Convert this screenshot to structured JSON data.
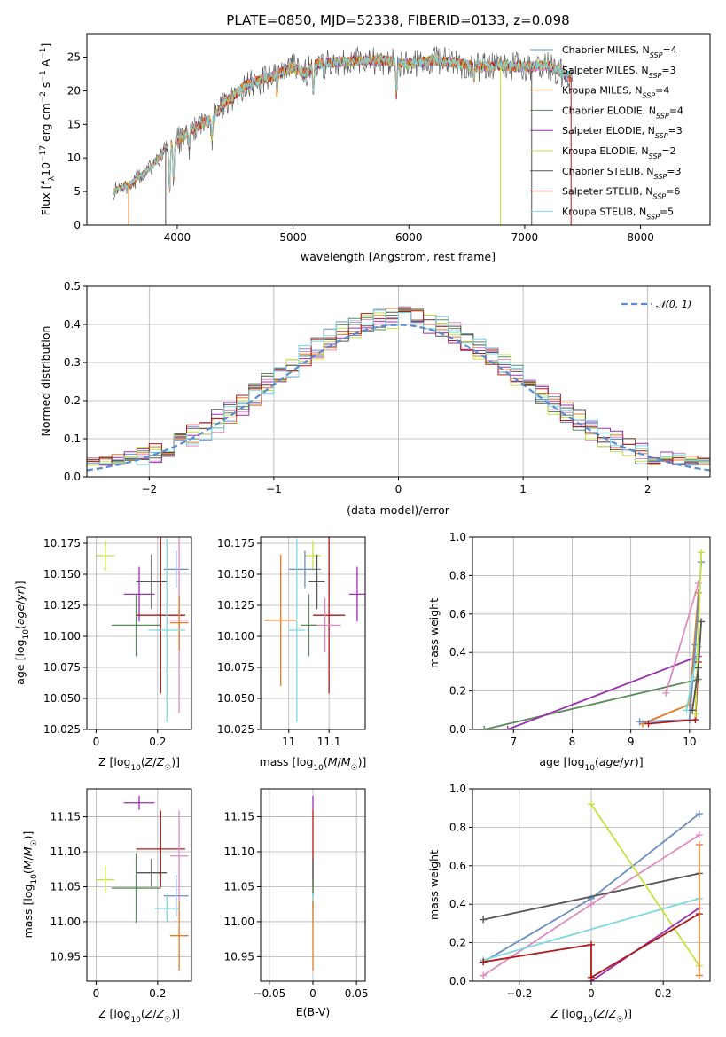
{
  "chart_data": [
    {
      "type": "line",
      "id": "spectrum",
      "title": "PLATE=0850, MJD=52338, FIBERID=0133, z=0.098",
      "xlabel": "wavelength [Angstrom, rest frame]",
      "ylabel": "Flux [fλ10⁻¹⁷ erg cm⁻² s⁻¹ A⁻¹]",
      "xlim": [
        3220,
        8600
      ],
      "ylim": [
        0,
        28.5
      ],
      "xticks": [
        4000,
        5000,
        6000,
        7000,
        8000
      ],
      "yticks": [
        0,
        5,
        10,
        15,
        20,
        25
      ],
      "grid": false,
      "legend": "upper right",
      "continuum_x": [
        3450,
        3600,
        3800,
        3900,
        4000,
        4100,
        4200,
        4300,
        4400,
        4600,
        4800,
        5000,
        5100,
        5200,
        5400,
        5600,
        5800,
        6000,
        6200,
        6400,
        6600,
        6800,
        7000,
        7200,
        7400
      ],
      "continuum_y": [
        5.0,
        6.2,
        9.0,
        11.5,
        12.5,
        14.0,
        15.0,
        15.8,
        18.0,
        21.0,
        22.0,
        23.5,
        22.5,
        24.0,
        24.3,
        24.5,
        24.5,
        24.0,
        24.5,
        24.2,
        23.5,
        23.8,
        23.5,
        23.8,
        22.0
      ],
      "series": [
        {
          "name": "Chabrier MILES, N_SSP=4",
          "color": "#6a8fc0"
        },
        {
          "name": "Salpeter MILES, N_SSP=3",
          "color": "#e08cc0"
        },
        {
          "name": "Kroupa MILES, N_SSP=4",
          "color": "#e07b28"
        },
        {
          "name": "Chabrier ELODIE, N_SSP=4",
          "color": "#5a8a5a"
        },
        {
          "name": "Salpeter ELODIE, N_SSP=3",
          "color": "#9b30b0"
        },
        {
          "name": "Kroupa ELODIE, N_SSP=2",
          "color": "#c8e040"
        },
        {
          "name": "Chabrier STELIB, N_SSP=3",
          "color": "#555555"
        },
        {
          "name": "Salpeter STELIB, N_SSP=6",
          "color": "#b01a1a"
        },
        {
          "name": "Kroupa STELIB, N_SSP=5",
          "color": "#7ed8e0"
        }
      ]
    },
    {
      "type": "bar",
      "id": "residuals",
      "xlabel": "(data-model)/error",
      "ylabel": "Normed distribution",
      "xlim": [
        -2.5,
        2.5
      ],
      "ylim": [
        0,
        0.5
      ],
      "xticks": [
        -2,
        -1,
        0,
        1,
        2
      ],
      "yticks": [
        0.0,
        0.1,
        0.2,
        0.3,
        0.4,
        0.5
      ],
      "grid": true,
      "legend": "upper right",
      "reference_curve": {
        "name": "𝒩(0, 1)",
        "mean": 0,
        "sigma": 1,
        "color": "#5b8bd0"
      },
      "bin_width": 0.1
    },
    {
      "type": "scatter",
      "id": "age-vs-Z",
      "xlabel": "Z [log10(Z/Z☉)]",
      "ylabel": "age  [log10(age/yr)]",
      "xlim": [
        -0.03,
        0.31
      ],
      "ylim": [
        10.025,
        10.18
      ],
      "xticks": [
        0.0,
        0.2
      ],
      "yticks": [
        10.025,
        10.05,
        10.075,
        10.1,
        10.125,
        10.15,
        10.175
      ],
      "grid": true,
      "points": [
        {
          "x": 0.03,
          "y": 10.165,
          "xerr": 0.03,
          "yerr": 0.012,
          "color": "#c8e040"
        },
        {
          "x": 0.26,
          "y": 10.154,
          "xerr": 0.04,
          "yerr": 0.015,
          "color": "#6a8fc0"
        },
        {
          "x": 0.14,
          "y": 10.134,
          "xerr": 0.05,
          "yerr": 0.022,
          "color": "#9b30b0"
        },
        {
          "x": 0.18,
          "y": 10.144,
          "xerr": 0.05,
          "yerr": 0.022,
          "color": "#555555"
        },
        {
          "x": 0.21,
          "y": 10.117,
          "xerr": 0.08,
          "yerr": 0.063,
          "color": "#b01a1a"
        },
        {
          "x": 0.27,
          "y": 10.113,
          "xerr": 0.03,
          "yerr": 0.075,
          "color": "#e08cc0"
        },
        {
          "x": 0.27,
          "y": 10.111,
          "xerr": 0.03,
          "yerr": 0.022,
          "color": "#e07b28"
        },
        {
          "x": 0.23,
          "y": 10.105,
          "xerr": 0.06,
          "yerr": 0.074,
          "color": "#7ed8e0"
        },
        {
          "x": 0.13,
          "y": 10.109,
          "xerr": 0.08,
          "yerr": 0.025,
          "color": "#5a8a5a"
        }
      ]
    },
    {
      "type": "scatter",
      "id": "age-vs-mass",
      "xlabel": "mass [log10(M/M☉)]",
      "xlim": [
        10.93,
        11.19
      ],
      "ylim": [
        10.025,
        10.18
      ],
      "xticks": [
        11.0,
        11.1
      ],
      "yticks": [
        10.025,
        10.05,
        10.075,
        10.1,
        10.125,
        10.15,
        10.175
      ],
      "grid": true,
      "points": [
        {
          "x": 11.06,
          "y": 10.165,
          "xerr": 0.02,
          "yerr": 0.012,
          "color": "#c8e040"
        },
        {
          "x": 11.04,
          "y": 10.154,
          "xerr": 0.04,
          "yerr": 0.015,
          "color": "#6a8fc0"
        },
        {
          "x": 11.17,
          "y": 10.134,
          "xerr": 0.02,
          "yerr": 0.022,
          "color": "#9b30b0"
        },
        {
          "x": 11.07,
          "y": 10.144,
          "xerr": 0.02,
          "yerr": 0.022,
          "color": "#555555"
        },
        {
          "x": 11.1,
          "y": 10.117,
          "xerr": 0.04,
          "yerr": 0.063,
          "color": "#b01a1a"
        },
        {
          "x": 11.09,
          "y": 10.109,
          "xerr": 0.04,
          "yerr": 0.022,
          "color": "#e08cc0"
        },
        {
          "x": 10.98,
          "y": 10.113,
          "xerr": 0.04,
          "yerr": 0.053,
          "color": "#e07b28"
        },
        {
          "x": 11.02,
          "y": 10.105,
          "xerr": 0.02,
          "yerr": 0.074,
          "color": "#7ed8e0"
        },
        {
          "x": 11.05,
          "y": 10.109,
          "xerr": 0.02,
          "yerr": 0.025,
          "color": "#5a8a5a"
        }
      ]
    },
    {
      "type": "line",
      "id": "mass-weight-vs-age",
      "xlabel": "age  [log10(age/yr)]",
      "ylabel": "mass weight",
      "xlim": [
        6.3,
        10.35
      ],
      "ylim": [
        0,
        1.0
      ],
      "xticks": [
        7,
        8,
        9,
        10
      ],
      "yticks": [
        0.0,
        0.2,
        0.4,
        0.6,
        0.8,
        1.0
      ],
      "grid": true,
      "series": [
        {
          "color": "#5a8a5a",
          "x": [
            6.5,
            10.15
          ],
          "y": [
            0.0,
            0.26
          ]
        },
        {
          "color": "#9b30b0",
          "x": [
            6.9,
            10.15
          ],
          "y": [
            0.0,
            0.38
          ]
        },
        {
          "color": "#e08cc0",
          "x": [
            9.6,
            10.15
          ],
          "y": [
            0.19,
            0.76
          ]
        },
        {
          "color": "#e07b28",
          "x": [
            9.2,
            10.0,
            10.15
          ],
          "y": [
            0.03,
            0.13,
            0.71
          ]
        },
        {
          "color": "#6a8fc0",
          "x": [
            9.15,
            10.0,
            10.1,
            10.2
          ],
          "y": [
            0.04,
            0.05,
            0.44,
            0.87
          ]
        },
        {
          "color": "#7ed8e0",
          "x": [
            9.95,
            10.05,
            10.15
          ],
          "y": [
            0.1,
            0.27,
            0.43
          ]
        },
        {
          "color": "#b01a1a",
          "x": [
            9.3,
            10.1,
            10.15
          ],
          "y": [
            0.03,
            0.05,
            0.35
          ]
        },
        {
          "color": "#c8e040",
          "x": [
            10.1,
            10.2
          ],
          "y": [
            0.08,
            0.92
          ]
        },
        {
          "color": "#555555",
          "x": [
            10.05,
            10.15,
            10.2
          ],
          "y": [
            0.1,
            0.32,
            0.56
          ]
        }
      ]
    },
    {
      "type": "scatter",
      "id": "mass-vs-Z",
      "xlabel": "Z [log10(Z/Z☉)]",
      "ylabel": "mass [log10(M/M☉)]",
      "xlim": [
        -0.03,
        0.31
      ],
      "ylim": [
        10.915,
        11.19
      ],
      "xticks": [
        0.0,
        0.2
      ],
      "yticks": [
        10.95,
        11.0,
        11.05,
        11.1,
        11.15
      ],
      "grid": true,
      "points": [
        {
          "x": 0.14,
          "y": 11.17,
          "xerr": 0.05,
          "yerr": 0.01,
          "color": "#9b30b0"
        },
        {
          "x": 0.21,
          "y": 11.104,
          "xerr": 0.08,
          "yerr": 0.055,
          "color": "#b01a1a"
        },
        {
          "x": 0.27,
          "y": 11.094,
          "xerr": 0.03,
          "yerr": 0.065,
          "color": "#e08cc0"
        },
        {
          "x": 0.18,
          "y": 11.07,
          "xerr": 0.05,
          "yerr": 0.02,
          "color": "#555555"
        },
        {
          "x": 0.03,
          "y": 11.06,
          "xerr": 0.03,
          "yerr": 0.02,
          "color": "#c8e040"
        },
        {
          "x": 0.13,
          "y": 11.048,
          "xerr": 0.08,
          "yerr": 0.05,
          "color": "#5a8a5a"
        },
        {
          "x": 0.26,
          "y": 11.037,
          "xerr": 0.04,
          "yerr": 0.03,
          "color": "#6a8fc0"
        },
        {
          "x": 0.23,
          "y": 11.019,
          "xerr": 0.04,
          "yerr": 0.02,
          "color": "#7ed8e0"
        },
        {
          "x": 0.27,
          "y": 10.98,
          "xerr": 0.03,
          "yerr": 0.05,
          "color": "#e07b28"
        }
      ]
    },
    {
      "type": "scatter",
      "id": "mass-vs-ebv",
      "xlabel": "E(B-V)",
      "xlim": [
        -0.06,
        0.06
      ],
      "ylim": [
        10.915,
        11.19
      ],
      "xticks": [
        -0.05,
        0.0,
        0.05
      ],
      "yticks": [
        10.95,
        11.0,
        11.05,
        11.1,
        11.15
      ],
      "grid": true,
      "points": [
        {
          "x": 0.0,
          "y": 11.17,
          "xerr": 0,
          "yerr": 0.01,
          "color": "#9b30b0"
        },
        {
          "x": 0.0,
          "y": 11.1,
          "xerr": 0,
          "yerr": 0.06,
          "color": "#b01a1a"
        },
        {
          "x": 0.0,
          "y": 11.07,
          "xerr": 0,
          "yerr": 0.02,
          "color": "#555555"
        },
        {
          "x": 0.0,
          "y": 11.04,
          "xerr": 0,
          "yerr": 0.02,
          "color": "#5a8a5a"
        },
        {
          "x": 0.0,
          "y": 11.02,
          "xerr": 0,
          "yerr": 0.02,
          "color": "#7ed8e0"
        },
        {
          "x": 0.0,
          "y": 10.98,
          "xerr": 0,
          "yerr": 0.05,
          "color": "#e07b28"
        }
      ]
    },
    {
      "type": "line",
      "id": "mass-weight-vs-Z",
      "xlabel": "Z [log10(Z/Z☉)]",
      "ylabel": "mass weight",
      "xlim": [
        -0.33,
        0.33
      ],
      "ylim": [
        0,
        1.0
      ],
      "xticks": [
        -0.2,
        0.0,
        0.2
      ],
      "yticks": [
        0.0,
        0.2,
        0.4,
        0.6,
        0.8,
        1.0
      ],
      "grid": true,
      "series": [
        {
          "color": "#6a8fc0",
          "x": [
            -0.3,
            0.0,
            0.3
          ],
          "y": [
            0.1,
            0.43,
            0.87
          ]
        },
        {
          "color": "#e08cc0",
          "x": [
            -0.3,
            0.0,
            0.3
          ],
          "y": [
            0.03,
            0.4,
            0.76
          ]
        },
        {
          "color": "#555555",
          "x": [
            -0.3,
            0.3
          ],
          "y": [
            0.32,
            0.56
          ]
        },
        {
          "color": "#7ed8e0",
          "x": [
            -0.3,
            0.3
          ],
          "y": [
            0.11,
            0.43
          ]
        },
        {
          "color": "#c8e040",
          "x": [
            0.0,
            0.3
          ],
          "y": [
            0.92,
            0.08
          ]
        },
        {
          "color": "#9b30b0",
          "x": [
            0.0,
            0.3
          ],
          "y": [
            0.0,
            0.38
          ]
        },
        {
          "color": "#b01a1a",
          "x": [
            -0.3,
            0.0,
            0.0,
            0.3
          ],
          "y": [
            0.1,
            0.19,
            0.02,
            0.35
          ]
        },
        {
          "color": "#e07b28",
          "x": [
            0.3,
            0.3
          ],
          "y": [
            0.03,
            0.71
          ]
        }
      ]
    }
  ]
}
